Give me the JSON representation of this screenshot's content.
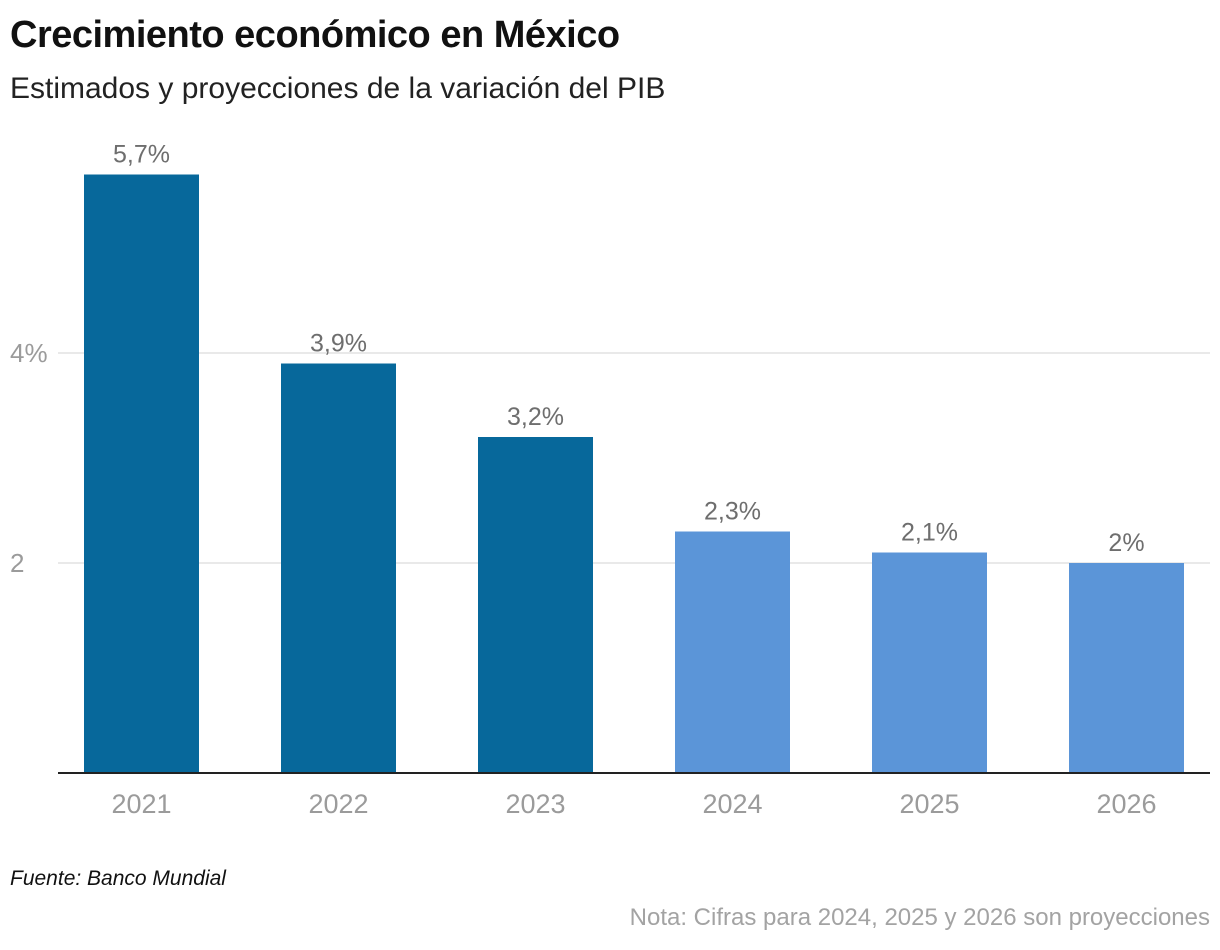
{
  "header": {
    "title": "Crecimiento económico en México",
    "subtitle": "Estimados y proyecciones de la variación del PIB"
  },
  "footer": {
    "source": "Fuente: Banco Mundial",
    "note": "Nota: Cifras para 2024, 2025 y 2026 son proyecciones"
  },
  "chart_data": {
    "type": "bar",
    "title": "Crecimiento económico en México",
    "subtitle": "Estimados y proyecciones de la variación del PIB",
    "categories": [
      "2021",
      "2022",
      "2023",
      "2024",
      "2025",
      "2026"
    ],
    "values": [
      5.7,
      3.9,
      3.2,
      2.3,
      2.1,
      2.0
    ],
    "value_labels": [
      "5,7%",
      "3,9%",
      "3,2%",
      "2,3%",
      "2,1%",
      "2%"
    ],
    "projected": [
      false,
      false,
      false,
      true,
      true,
      true
    ],
    "ylim": [
      0,
      6.0
    ],
    "yticks": [
      {
        "value": 2,
        "label": "2"
      },
      {
        "value": 4,
        "label": "4%"
      }
    ],
    "xlabel": "",
    "ylabel": "",
    "grid": true,
    "colors": {
      "estimate": "#07689b",
      "projection": "#5b95d8",
      "gridline": "#e2e2e2",
      "baseline": "#222222",
      "tick_label": "#9b9b9b",
      "value_label": "#6e6e6e"
    }
  }
}
